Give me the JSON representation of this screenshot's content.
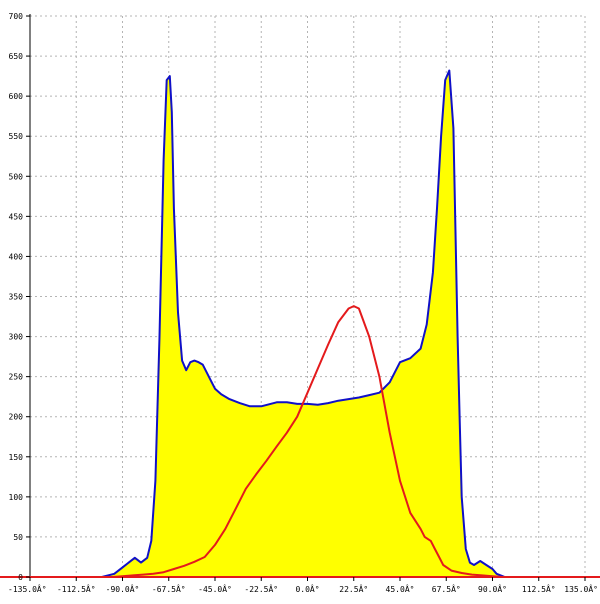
{
  "chart_data": {
    "type": "area",
    "title": "",
    "xlabel": "",
    "ylabel": "",
    "xlim": [
      -135,
      135
    ],
    "ylim": [
      0,
      700
    ],
    "grid": true,
    "x_ticks": [
      -135.0,
      -112.5,
      -90.0,
      -67.5,
      -45.0,
      -22.5,
      0.0,
      22.5,
      45.0,
      67.5,
      90.0,
      112.5,
      135.0
    ],
    "x_tick_labels": [
      "-135.0Â°",
      "-112.5Â°",
      "-90.0Â°",
      "-67.5Â°",
      "-45.0Â°",
      "-22.5Â°",
      "0.0Â°",
      "22.5Â°",
      "45.0Â°",
      "67.5Â°",
      "90.0Â°",
      "112.5Â°",
      "135.0Â°"
    ],
    "y_ticks": [
      0,
      50,
      100,
      150,
      200,
      250,
      300,
      350,
      400,
      450,
      500,
      550,
      600,
      650,
      700
    ],
    "y_tick_labels": [
      "0",
      "50",
      "100",
      "150",
      "200",
      "250",
      "300",
      "350",
      "400",
      "450",
      "500",
      "550",
      "600",
      "650",
      "700"
    ],
    "series": [
      {
        "color": "#1010c8",
        "fill": "#ffff00",
        "x": [
          -135,
          -100,
          -94,
          -90,
          -87,
          -84,
          -81,
          -78,
          -76,
          -74,
          -72,
          -70,
          -68.5,
          -67,
          -66,
          -65,
          -63,
          -61,
          -59,
          -57,
          -55,
          -53,
          -51,
          -48,
          -45,
          -42,
          -38,
          -33,
          -28,
          -22.5,
          -15,
          -10,
          -5,
          0,
          5,
          10,
          15,
          20,
          25,
          30,
          35,
          40,
          43,
          45,
          50,
          55,
          58,
          61,
          63,
          65,
          67,
          69,
          71,
          72,
          73,
          74,
          75,
          77,
          79,
          81,
          84,
          87,
          90,
          92,
          94,
          96,
          100,
          135
        ],
        "y": [
          0,
          0,
          4,
          12,
          18,
          24,
          18,
          24,
          45,
          120,
          300,
          520,
          620,
          625,
          580,
          460,
          330,
          270,
          258,
          268,
          270,
          268,
          265,
          250,
          235,
          228,
          222,
          217,
          213,
          213,
          218,
          218,
          216,
          216,
          215,
          217,
          220,
          222,
          224,
          227,
          230,
          243,
          258,
          268,
          273,
          285,
          315,
          380,
          460,
          550,
          620,
          632,
          560,
          430,
          300,
          200,
          100,
          35,
          18,
          15,
          20,
          15,
          10,
          4,
          2,
          0,
          0,
          0
        ]
      },
      {
        "color": "#e41a1c",
        "fill": "none",
        "x": [
          -135,
          -95,
          -90,
          -85,
          -80,
          -75,
          -70,
          -65,
          -60,
          -55,
          -50,
          -45,
          -40,
          -35,
          -30,
          -25,
          -20,
          -15,
          -10,
          -5,
          0,
          5,
          10,
          15,
          20,
          22.5,
          25,
          30,
          35,
          40,
          45,
          50,
          55,
          57,
          60,
          62,
          64,
          66,
          70,
          75,
          80,
          85,
          90,
          95,
          100,
          135
        ],
        "y": [
          0,
          0,
          1,
          2,
          3,
          4,
          6,
          10,
          14,
          19,
          25,
          40,
          60,
          85,
          110,
          128,
          145,
          163,
          180,
          200,
          230,
          260,
          290,
          318,
          335,
          338,
          335,
          300,
          250,
          180,
          120,
          80,
          60,
          50,
          45,
          35,
          25,
          15,
          8,
          5,
          3,
          2,
          1,
          0,
          0,
          0
        ]
      }
    ]
  }
}
